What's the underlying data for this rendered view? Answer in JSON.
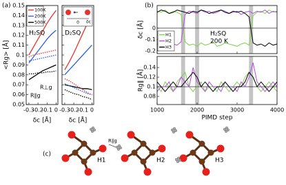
{
  "panel_labels": [
    "(a)",
    "(b)",
    "(c)"
  ],
  "chart_data": [
    {
      "type": "line",
      "title": "H₂SQ",
      "ylabel": "<Rg> [Å]",
      "xlabel": "δc [Å]",
      "x": [
        -0.3,
        -0.25,
        -0.2,
        -0.15,
        -0.1,
        -0.05,
        0
      ],
      "xlim": [
        -0.33,
        0.02
      ],
      "xticks": [
        -0.3,
        -0.2,
        -0.1,
        0
      ],
      "ylim": [
        0.05,
        0.15
      ],
      "yticks": [
        0.05,
        0.06,
        0.07,
        0.08,
        0.09,
        0.1,
        0.11,
        0.12,
        0.13,
        0.14,
        0.15
      ],
      "annotations": [
        "R⊥g",
        "R∥g"
      ],
      "series": [
        {
          "name": "100K",
          "color": "#e8322b",
          "dash": "solid",
          "values": [
            0.1,
            0.108,
            0.116,
            0.124,
            0.132,
            0.139,
            0.145
          ]
        },
        {
          "name": "200K",
          "color": "#2a5fe0",
          "dash": "solid",
          "values": [
            0.092,
            0.098,
            0.104,
            0.11,
            0.116,
            0.121,
            0.125
          ]
        },
        {
          "name": "500K",
          "color": "#000000",
          "dash": "solid",
          "values": [
            0.075,
            0.078,
            0.081,
            0.084,
            0.086,
            0.088,
            0.09
          ]
        },
        {
          "color": "#e8322b",
          "dash": "dotted",
          "values": [
            0.098,
            0.1,
            0.101,
            0.102,
            0.103,
            0.104,
            0.105
          ]
        },
        {
          "color": "#2a5fe0",
          "dash": "dotted",
          "values": [
            0.094,
            0.095,
            0.096,
            0.097,
            0.098,
            0.099,
            0.1
          ]
        },
        {
          "color": "#000000",
          "dash": "dotted",
          "values": [
            0.081,
            0.081,
            0.082,
            0.082,
            0.083,
            0.083,
            0.084
          ]
        }
      ]
    },
    {
      "type": "line",
      "title": "D₂SQ",
      "xlabel": "δc [Å]",
      "inset_labels": [
        "0",
        "δc"
      ],
      "x": [
        -0.3,
        -0.25,
        -0.2,
        -0.15,
        -0.1,
        -0.05,
        0
      ],
      "xlim": [
        -0.33,
        0.02
      ],
      "xticks": [
        -0.3,
        -0.2,
        -0.1,
        0
      ],
      "ylim": [
        0.05,
        0.15
      ],
      "yticks": [
        0.05,
        0.06,
        0.07,
        0.08,
        0.09,
        0.1,
        0.11,
        0.12,
        0.13,
        0.14,
        0.15
      ],
      "series": [
        {
          "color": "#e8322b",
          "dash": "solid",
          "values": [
            0.085,
            0.093,
            0.102,
            0.112,
            0.122,
            0.132,
            0.14
          ]
        },
        {
          "color": "#2a5fe0",
          "dash": "solid",
          "values": [
            0.08,
            0.085,
            0.09,
            0.095,
            0.1,
            0.105,
            0.11
          ]
        },
        {
          "color": "#000000",
          "dash": "solid",
          "values": [
            0.07,
            0.069,
            0.068,
            0.067,
            0.066,
            0.066,
            0.065
          ]
        },
        {
          "color": "#e8322b",
          "dash": "dotted",
          "values": [
            0.076,
            0.074,
            0.071,
            0.068,
            0.065,
            0.062,
            0.06
          ]
        },
        {
          "color": "#2a5fe0",
          "dash": "dotted",
          "values": [
            0.071,
            0.069,
            0.067,
            0.065,
            0.063,
            0.061,
            0.06
          ]
        },
        {
          "color": "#000000",
          "dash": "dotted",
          "values": [
            0.065,
            0.063,
            0.061,
            0.06,
            0.058,
            0.057,
            0.055
          ]
        }
      ]
    },
    {
      "type": "line",
      "ylabel": "δc [Å]",
      "annotations": [
        "H₂SQ",
        "200 K"
      ],
      "x": [
        1000,
        1100,
        1200,
        1300,
        1400,
        1500,
        1600,
        1700,
        1800,
        1900,
        2000,
        2100,
        2200,
        2300,
        2400,
        2500,
        2600,
        2700,
        2800,
        2900,
        3000,
        3100,
        3200,
        3300,
        3400,
        3500,
        3600,
        3700,
        3800,
        3900,
        4000
      ],
      "xlim": [
        1000,
        4000
      ],
      "xticks": [
        1000,
        2000,
        3000,
        4000
      ],
      "ylim": [
        -0.225,
        0.2
      ],
      "yticks": [
        -0.2,
        -0.1,
        0
      ],
      "reference_line": 0,
      "highlight_ranges": [
        [
          1600,
          1700
        ],
        [
          1950,
          2050
        ],
        [
          3300,
          3400
        ]
      ],
      "series": [
        {
          "name": "H1",
          "color": "#7ed04b",
          "values": [
            0.15,
            0.14,
            0.16,
            0.13,
            0.15,
            0.14,
            0.12,
            -0.12,
            -0.15,
            -0.14,
            -0.16,
            -0.13,
            -0.15,
            -0.14,
            -0.12,
            -0.16,
            -0.15,
            -0.13,
            -0.14,
            -0.15,
            -0.16,
            -0.14,
            -0.13,
            -0.15,
            0.11,
            0.14,
            0.15,
            0.13,
            0.16,
            0.14,
            0.15
          ]
        },
        {
          "name": "H2",
          "color": "#b050e0",
          "values": [
            -0.14,
            -0.15,
            -0.13,
            -0.16,
            -0.14,
            -0.15,
            -0.12,
            0.12,
            0.15,
            0.14,
            0.13,
            0.16,
            0.14,
            0.15,
            0.13,
            0.14,
            0.16,
            0.15,
            0.13,
            0.14,
            0.15,
            0.12,
            0.14,
            0.15,
            0.13,
            0.15,
            0.14,
            0.16,
            0.13,
            0.15,
            0.14
          ]
        },
        {
          "name": "H3",
          "color": "#000000",
          "values": [
            0.14,
            0.16,
            0.15,
            0.13,
            0.14,
            0.16,
            0.15,
            0.14,
            0.13,
            0.15,
            0.14,
            0.16,
            0.15,
            0.13,
            0.14,
            0.15,
            0.16,
            0.14,
            0.13,
            0.15,
            0.14,
            0.15,
            0.13,
            0.1,
            -0.13,
            -0.15,
            -0.14,
            -0.16,
            -0.13,
            -0.15,
            -0.14
          ]
        }
      ]
    },
    {
      "type": "line",
      "ylabel": "Rg∥ [Å]",
      "xlabel": "PIMD step",
      "x": [
        1000,
        1100,
        1200,
        1300,
        1400,
        1500,
        1600,
        1700,
        1800,
        1900,
        2000,
        2100,
        2200,
        2300,
        2400,
        2500,
        2600,
        2700,
        2800,
        2900,
        3000,
        3100,
        3200,
        3300,
        3400,
        3500,
        3600,
        3700,
        3800,
        3900,
        4000
      ],
      "xlim": [
        1000,
        4000
      ],
      "xticks": [
        1000,
        2000,
        3000,
        4000
      ],
      "ylim": [
        0.063,
        0.163
      ],
      "yticks": [
        0.08,
        0.1,
        0.12,
        0.14
      ],
      "reference_line": 0.1,
      "highlight_ranges": [
        [
          1600,
          1700
        ],
        [
          1950,
          2050
        ],
        [
          3300,
          3400
        ]
      ],
      "series": [
        {
          "color": "#7ed04b",
          "values": [
            0.1,
            0.09,
            0.11,
            0.1,
            0.09,
            0.11,
            0.12,
            0.13,
            0.1,
            0.09,
            0.1,
            0.11,
            0.09,
            0.1,
            0.1,
            0.09,
            0.11,
            0.1,
            0.09,
            0.1,
            0.11,
            0.1,
            0.12,
            0.13,
            0.12,
            0.1,
            0.09,
            0.1,
            0.11,
            0.1,
            0.09
          ]
        },
        {
          "color": "#b050e0",
          "values": [
            0.09,
            0.1,
            0.1,
            0.11,
            0.09,
            0.1,
            0.12,
            0.11,
            0.1,
            0.14,
            0.11,
            0.1,
            0.09,
            0.11,
            0.1,
            0.1,
            0.09,
            0.11,
            0.1,
            0.1,
            0.09,
            0.11,
            0.1,
            0.12,
            0.15,
            0.11,
            0.1,
            0.09,
            0.1,
            0.11,
            0.1
          ]
        },
        {
          "color": "#000000",
          "values": [
            0.11,
            0.1,
            0.09,
            0.1,
            0.11,
            0.1,
            0.1,
            0.11,
            0.12,
            0.13,
            0.12,
            0.1,
            0.11,
            0.1,
            0.09,
            0.1,
            0.1,
            0.11,
            0.1,
            0.09,
            0.1,
            0.1,
            0.11,
            0.13,
            0.12,
            0.1,
            0.11,
            0.1,
            0.09,
            0.1,
            0.11
          ]
        }
      ]
    }
  ],
  "diagram": {
    "labels": [
      "H1",
      "H2",
      "H3"
    ],
    "annotation": "R∥g"
  }
}
